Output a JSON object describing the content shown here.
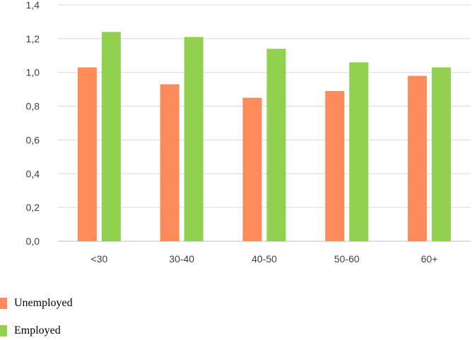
{
  "chart_data": {
    "type": "bar",
    "categories": [
      "<30",
      "30-40",
      "40-50",
      "50-60",
      "60+"
    ],
    "series": [
      {
        "name": "Unemployed",
        "values": [
          1.03,
          0.93,
          0.85,
          0.89,
          0.98
        ],
        "color": "#FF8A5C"
      },
      {
        "name": "Employed",
        "values": [
          1.24,
          1.21,
          1.14,
          1.06,
          1.03
        ],
        "color": "#92D050"
      }
    ],
    "yticks": [
      "0,0",
      "0,2",
      "0,4",
      "0,6",
      "0,8",
      "1,0",
      "1,2",
      "1,4"
    ],
    "ylim": [
      0,
      1.4
    ],
    "grid": true,
    "legend_position": "bottom-left",
    "title": "",
    "xlabel": "",
    "ylabel": ""
  }
}
